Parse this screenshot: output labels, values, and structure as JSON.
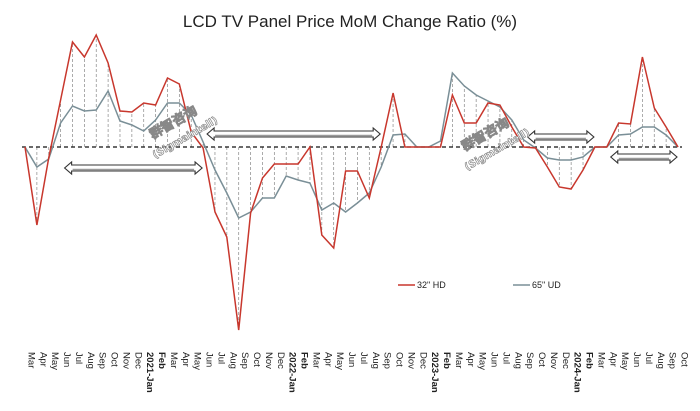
{
  "chart_data": {
    "type": "line",
    "title": "LCD TV Panel Price MoM Change Ratio (%)",
    "xlabel": "",
    "ylabel": "",
    "y_axis_labeled": false,
    "value_note": "Y axis has no tick labels; values are relative estimates in %",
    "ylim": [
      -19,
      12
    ],
    "grid": false,
    "legend_position": "bottom-right",
    "x": [
      "Mar",
      "Apr",
      "May",
      "Jun",
      "Jul",
      "Aug",
      "Sep",
      "Oct",
      "Nov",
      "Dec",
      "2021-Jan",
      "Feb",
      "Mar",
      "Apr",
      "May",
      "Jun",
      "Jul",
      "Aug",
      "Sep",
      "Oct",
      "Nov",
      "Dec",
      "2022-Jan",
      "Feb",
      "Mar",
      "Apr",
      "May",
      "Jun",
      "Jul",
      "Aug",
      "Sep",
      "Oct",
      "Nov",
      "Dec",
      "2023-Jan",
      "Feb",
      "Mar",
      "Apr",
      "May",
      "Jun",
      "Jul",
      "Aug",
      "Sep",
      "Oct",
      "Nov",
      "Dec",
      "2024-Jan",
      "Feb",
      "Mar",
      "Apr",
      "May",
      "Jun",
      "Jul",
      "Aug",
      "Sep",
      "Oct"
    ],
    "series": [
      {
        "name": "32\" HD",
        "color": "#c8372d",
        "values": [
          0,
          -7.8,
          -1.1,
          4.7,
          10.5,
          9.0,
          11.2,
          8.4,
          3.6,
          3.5,
          4.4,
          4.2,
          6.9,
          6.3,
          1.5,
          -0.1,
          -6.5,
          -9.0,
          -18.3,
          -6.6,
          -3.1,
          -1.7,
          -1.7,
          -1.7,
          0,
          -8.8,
          -10.1,
          -2.4,
          -2.4,
          -5.1,
          0,
          5.4,
          0,
          0,
          0,
          0,
          5.2,
          2.4,
          2.4,
          4.4,
          4.2,
          2.0,
          0,
          -0.1,
          -2.0,
          -4.0,
          -4.2,
          -2.3,
          0,
          0,
          2.4,
          2.3,
          9.0,
          3.9,
          2.0,
          0
        ]
      },
      {
        "name": "65\" UD",
        "color": "#7a8f97",
        "values": [
          0,
          -2.0,
          -1.2,
          2.4,
          4.1,
          3.6,
          3.7,
          5.6,
          2.6,
          2.2,
          1.6,
          2.7,
          4.4,
          4.4,
          3.2,
          0.5,
          -2.3,
          -4.6,
          -7.1,
          -6.5,
          -5.1,
          -5.1,
          -2.9,
          -3.3,
          -3.6,
          -6.3,
          -5.6,
          -6.5,
          -5.6,
          -4.6,
          -2.0,
          1.2,
          1.3,
          0,
          0,
          0.6,
          7.4,
          6.1,
          5.2,
          4.6,
          4.0,
          2.7,
          0.7,
          -0.1,
          -1.1,
          -1.3,
          -1.3,
          -1.0,
          0,
          0,
          1.2,
          1.3,
          2.0,
          2.0,
          1.2,
          0
        ]
      }
    ],
    "legend": [
      "32\" HD",
      "65\" UD"
    ],
    "annotations": [
      {
        "type": "double-arrow",
        "from": "Jun",
        "to": "2021-Jun",
        "side": "below-zero"
      },
      {
        "type": "double-arrow",
        "from": "2021-Jun",
        "to": "2022-Sep",
        "side": "above-zero"
      },
      {
        "type": "double-arrow",
        "from": "2023-Sep",
        "to": "2024-Mar",
        "side": "above-zero"
      },
      {
        "type": "double-arrow",
        "from": "2024-Apr",
        "to": "2024-Oct",
        "side": "below-zero"
      }
    ],
    "bold_ticks": [
      "2021-Jan",
      "Feb",
      "2022-Jan",
      "2023-Jan",
      "Feb",
      "2024-Jan",
      "Feb"
    ],
    "watermark": {
      "cn": "群智咨询",
      "en": "(Sigmaintell)"
    }
  }
}
